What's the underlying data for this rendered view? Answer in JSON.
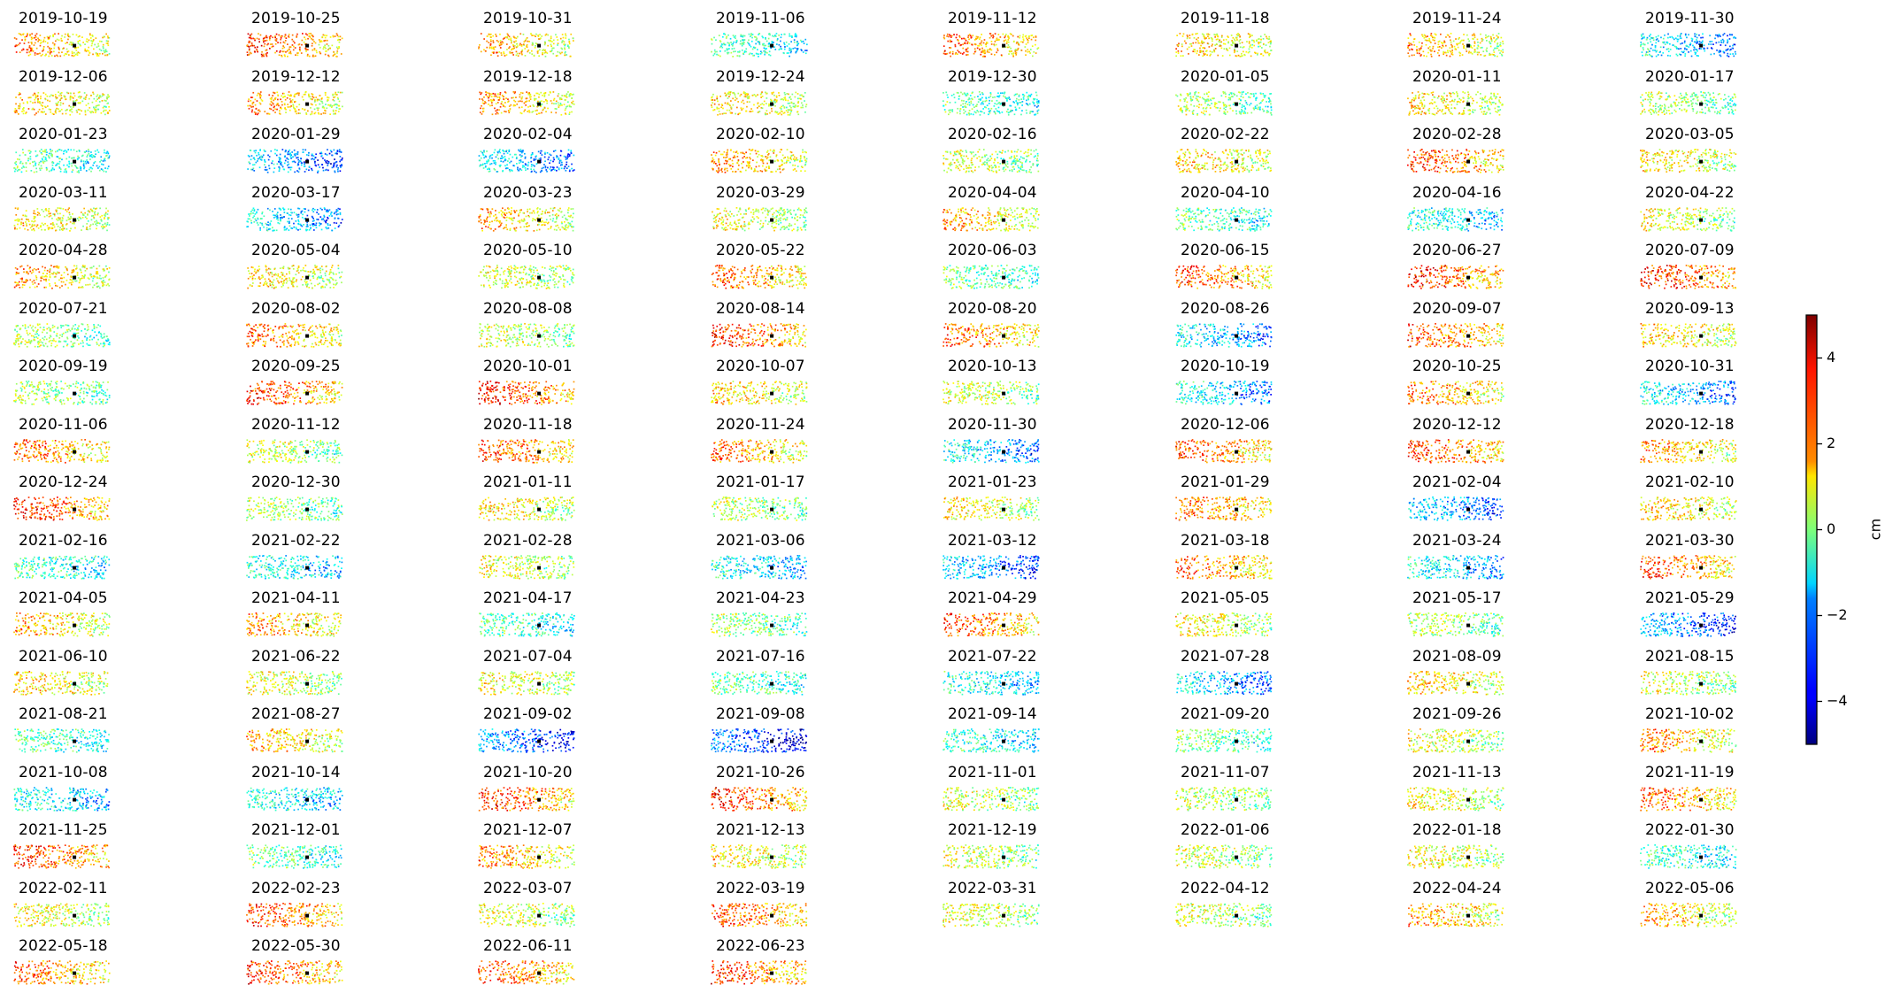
{
  "chart_data": {
    "type": "scatter",
    "description_kind": "small-multiples",
    "panels": [
      "2019-10-19",
      "2019-10-25",
      "2019-10-31",
      "2019-11-06",
      "2019-11-12",
      "2019-11-18",
      "2019-11-24",
      "2019-11-30",
      "2019-12-06",
      "2019-12-12",
      "2019-12-18",
      "2019-12-24",
      "2019-12-30",
      "2020-01-05",
      "2020-01-11",
      "2020-01-17",
      "2020-01-23",
      "2020-01-29",
      "2020-02-04",
      "2020-02-10",
      "2020-02-16",
      "2020-02-22",
      "2020-02-28",
      "2020-03-05",
      "2020-03-11",
      "2020-03-17",
      "2020-03-23",
      "2020-03-29",
      "2020-04-04",
      "2020-04-10",
      "2020-04-16",
      "2020-04-22",
      "2020-04-28",
      "2020-05-04",
      "2020-05-10",
      "2020-05-22",
      "2020-06-03",
      "2020-06-15",
      "2020-06-27",
      "2020-07-09",
      "2020-07-21",
      "2020-08-02",
      "2020-08-08",
      "2020-08-14",
      "2020-08-20",
      "2020-08-26",
      "2020-09-07",
      "2020-09-13",
      "2020-09-19",
      "2020-09-25",
      "2020-10-01",
      "2020-10-07",
      "2020-10-13",
      "2020-10-19",
      "2020-10-25",
      "2020-10-31",
      "2020-11-06",
      "2020-11-12",
      "2020-11-18",
      "2020-11-24",
      "2020-11-30",
      "2020-12-06",
      "2020-12-12",
      "2020-12-18",
      "2020-12-24",
      "2020-12-30",
      "2021-01-11",
      "2021-01-17",
      "2021-01-23",
      "2021-01-29",
      "2021-02-04",
      "2021-02-10",
      "2021-02-16",
      "2021-02-22",
      "2021-02-28",
      "2021-03-06",
      "2021-03-12",
      "2021-03-18",
      "2021-03-24",
      "2021-03-30",
      "2021-04-05",
      "2021-04-11",
      "2021-04-17",
      "2021-04-23",
      "2021-04-29",
      "2021-05-05",
      "2021-05-17",
      "2021-05-29",
      "2021-06-10",
      "2021-06-22",
      "2021-07-04",
      "2021-07-16",
      "2021-07-22",
      "2021-07-28",
      "2021-08-09",
      "2021-08-15",
      "2021-08-21",
      "2021-08-27",
      "2021-09-02",
      "2021-09-08",
      "2021-09-14",
      "2021-09-20",
      "2021-09-26",
      "2021-10-02",
      "2021-10-08",
      "2021-10-14",
      "2021-10-20",
      "2021-10-26",
      "2021-11-01",
      "2021-11-07",
      "2021-11-13",
      "2021-11-19",
      "2021-11-25",
      "2021-12-01",
      "2021-12-07",
      "2021-12-13",
      "2021-12-19",
      "2022-01-06",
      "2022-01-18",
      "2022-01-30",
      "2022-02-11",
      "2022-02-23",
      "2022-03-07",
      "2022-03-19",
      "2022-03-31",
      "2022-04-12",
      "2022-04-24",
      "2022-05-06",
      "2022-05-18",
      "2022-05-30",
      "2022-06-11",
      "2022-06-23"
    ],
    "panel_mean_cm": [
      1.8,
      2.5,
      1.6,
      -0.8,
      2.2,
      1.4,
      1.6,
      -1.8,
      1.4,
      1.8,
      1.8,
      1.2,
      -0.6,
      0.2,
      1.2,
      0.3,
      -0.6,
      -2.2,
      -1.8,
      1.8,
      0.5,
      1.4,
      2.6,
      1.2,
      1.2,
      -1.8,
      1.6,
      0.8,
      1.6,
      -0.5,
      -1.2,
      0.8,
      1.6,
      1.2,
      0.8,
      2.2,
      -0.4,
      2.4,
      2.8,
      2.8,
      0.2,
      2.0,
      0.6,
      2.6,
      2.2,
      -1.8,
      2.4,
      1.4,
      0.2,
      2.6,
      2.8,
      1.4,
      0.6,
      -1.6,
      2.0,
      -1.8,
      2.2,
      0.6,
      2.4,
      2.0,
      -1.8,
      2.4,
      2.6,
      1.8,
      2.8,
      0.2,
      1.2,
      0.4,
      1.0,
      2.2,
      -2.2,
      1.4,
      -0.8,
      -1.2,
      0.8,
      -1.4,
      -2.2,
      2.2,
      -1.6,
      2.4,
      1.6,
      1.8,
      -0.6,
      0.0,
      2.4,
      1.0,
      0.2,
      -2.6,
      1.4,
      0.8,
      1.0,
      -0.4,
      -1.2,
      -1.8,
      1.4,
      0.6,
      -0.6,
      1.6,
      -2.8,
      -3.2,
      -1.0,
      -0.2,
      0.8,
      1.8,
      -1.4,
      -1.2,
      2.6,
      2.8,
      0.6,
      0.4,
      1.0,
      2.2,
      2.6,
      -0.4,
      1.8,
      1.2,
      0.6,
      0.6,
      1.0,
      -0.8,
      1.0,
      2.6,
      0.8,
      2.4,
      0.8,
      0.6,
      1.8,
      1.6,
      2.2,
      2.6,
      2.4,
      2.6
    ],
    "colormap": "jet",
    "colorbar": {
      "label": "cm",
      "vmin": -5,
      "vmax": 5,
      "ticks": [
        4,
        2,
        0,
        -2,
        -4
      ],
      "tick_labels": [
        "4",
        "2",
        "0",
        "−2",
        "−4"
      ]
    },
    "grid": false,
    "axes_visible": false,
    "reference_marker": "black dot near panel center"
  }
}
